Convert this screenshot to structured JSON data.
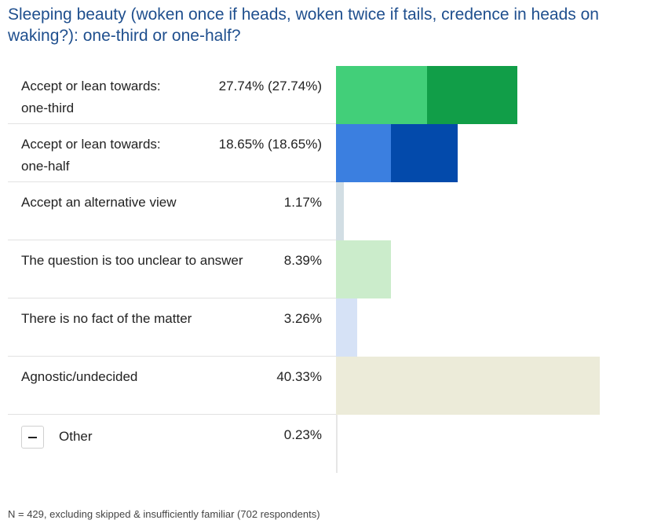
{
  "title": "Sleeping beauty (woken once if heads, woken twice if tails, credence in heads on waking?): one-third or one-half?",
  "footnote": "N = 429, excluding skipped & insufficiently familiar (702 respondents)",
  "colors": {
    "one_third_light": "#42cf79",
    "one_third_dark": "#119e48",
    "one_half_light": "#3b7fe0",
    "one_half_dark": "#034aab",
    "alternative": "#d2dee4",
    "unclear": "#cbeccb",
    "no_fact": "#d6e2f6",
    "agnostic": "#ecebd9",
    "other": "#e6e6e6"
  },
  "chart_data": {
    "type": "bar",
    "orientation": "horizontal",
    "title": "Sleeping beauty (woken once if heads, woken twice if tails, credence in heads on waking?): one-third or one-half?",
    "xlim": [
      0,
      48
    ],
    "categories": [
      "Accept or lean towards: one-third",
      "Accept or lean towards: one-half",
      "Accept an alternative view",
      "The question is too unclear to answer",
      "There is no fact of the matter",
      "Agnostic/undecided",
      "Other"
    ],
    "rows": [
      {
        "label": "Accept or lean towards: one-third",
        "value_label": "27.74% (27.74%)",
        "value": 27.74,
        "split": [
          13.87,
          13.87
        ],
        "colors": [
          "one_third_light",
          "one_third_dark"
        ]
      },
      {
        "label": "Accept or lean towards: one-half",
        "value_label": "18.65% (18.65%)",
        "value": 18.65,
        "split": [
          8.39,
          10.26
        ],
        "colors": [
          "one_half_light",
          "one_half_dark"
        ]
      },
      {
        "label": "Accept an alternative view",
        "value_label": "1.17%",
        "value": 1.17,
        "colors": [
          "alternative"
        ]
      },
      {
        "label": "The question is too unclear to answer",
        "value_label": "8.39%",
        "value": 8.39,
        "colors": [
          "unclear"
        ]
      },
      {
        "label": "There is no fact of the matter",
        "value_label": "3.26%",
        "value": 3.26,
        "colors": [
          "no_fact"
        ]
      },
      {
        "label": "Agnostic/undecided",
        "value_label": "40.33%",
        "value": 40.33,
        "colors": [
          "agnostic"
        ]
      },
      {
        "label": "Other",
        "value_label": "0.23%",
        "value": 0.23,
        "colors": [
          "other"
        ],
        "collapsible": true
      }
    ]
  }
}
